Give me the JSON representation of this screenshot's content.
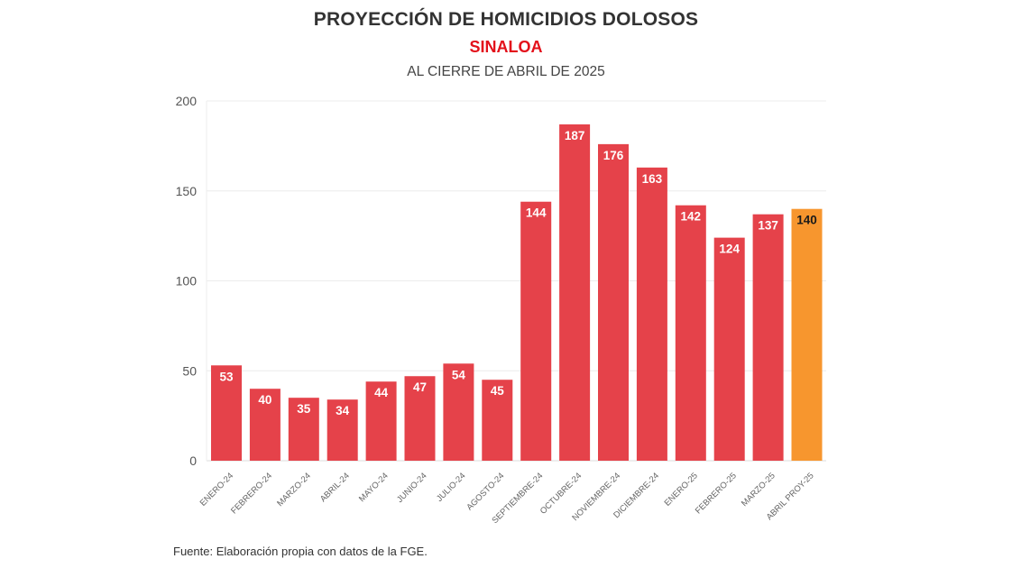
{
  "chart_data": {
    "type": "bar",
    "title": "PROYECCIÓN DE HOMICIDIOS DOLOSOS",
    "subtitle": "SINALOA",
    "subtitle2": "AL CIERRE DE ABRIL DE 2025",
    "xlabel": "",
    "ylabel": "",
    "ylim": [
      0,
      200
    ],
    "yticks": [
      0,
      50,
      100,
      150,
      200
    ],
    "grid": true,
    "categories": [
      "ENERO-24",
      "FEBRERO-24",
      "MARZO-24",
      "ABRIL-24",
      "MAYO-24",
      "JUNIO-24",
      "JULIO-24",
      "AGOSTO-24",
      "SEPTIEMBRE-24",
      "OCTUBRE-24",
      "NOVIEMBRE-24",
      "DICIEMBRE-24",
      "ENERO-25",
      "FEBRERO-25",
      "MARZO-25",
      "ABRIL PROY-25"
    ],
    "values": [
      53,
      40,
      35,
      34,
      44,
      47,
      54,
      45,
      144,
      187,
      176,
      163,
      142,
      124,
      137,
      140
    ],
    "projected": [
      false,
      false,
      false,
      false,
      false,
      false,
      false,
      false,
      false,
      false,
      false,
      false,
      false,
      false,
      false,
      true
    ],
    "colors": {
      "actual": "#e5424a",
      "projected": "#f7962e",
      "label_actual": "#ffffff",
      "label_projected": "#1a1a1a"
    }
  },
  "source": "Fuente: Elaboración propia con datos de la FGE."
}
